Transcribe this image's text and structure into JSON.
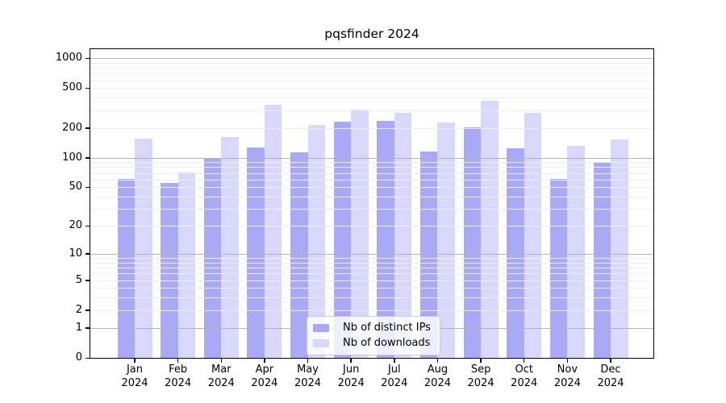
{
  "chart_data": {
    "type": "bar",
    "title": "pqsfinder 2024",
    "year": "2024",
    "months": [
      "Jan",
      "Feb",
      "Mar",
      "Apr",
      "May",
      "Jun",
      "Jul",
      "Aug",
      "Sep",
      "Oct",
      "Nov",
      "Dec"
    ],
    "series": [
      {
        "key": "distinct-ips",
        "name": "Nb of distinct IPs",
        "color": "#a9a9f6",
        "values": [
          61,
          55,
          98,
          126,
          113,
          230,
          234,
          116,
          201,
          124,
          61,
          88
        ]
      },
      {
        "key": "downloads",
        "name": "Nb of downloads",
        "color": "#d8d8fa",
        "values": [
          155,
          71,
          162,
          340,
          213,
          304,
          282,
          225,
          374,
          282,
          131,
          152
        ]
      }
    ],
    "yticks": [
      0,
      1,
      2,
      5,
      10,
      20,
      50,
      100,
      200,
      500,
      1000
    ],
    "scale": "log1p",
    "ylim": [
      0,
      1230
    ],
    "grid": true,
    "legend_position": "bottom-center",
    "colors": {
      "major_grid": "#b3b3b3",
      "minor_grid": "#ededed",
      "axis": "#000000",
      "background": "#ffffff"
    }
  }
}
